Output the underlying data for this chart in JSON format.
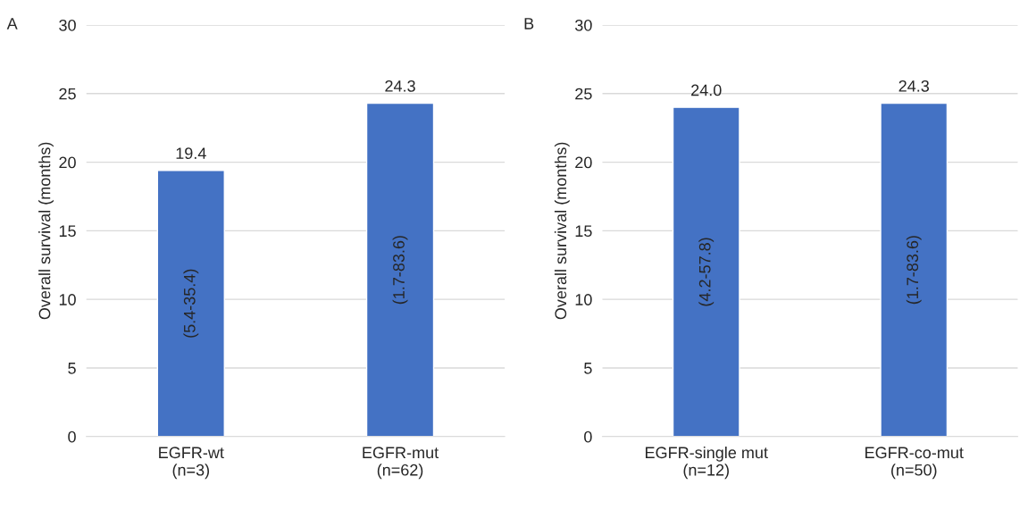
{
  "chart_data": [
    {
      "type": "bar",
      "title": "A",
      "ylabel": "Overall survival (months)",
      "categories": [
        "EGFR-wt\n(n=3)",
        "EGFR-mut\n(n=62)"
      ],
      "values": [
        19.4,
        24.3
      ],
      "value_labels": [
        "19.4",
        "24.3"
      ],
      "color": "#4472c4",
      "ylim": [
        0,
        30
      ],
      "yticks": [
        0,
        5,
        10,
        15,
        20,
        25,
        30
      ],
      "grid": "y",
      "annotations": [
        "(5.4-35.4)",
        "(1.7-83.6)"
      ]
    },
    {
      "type": "bar",
      "title": "B",
      "ylabel": "Overall survival (months)",
      "categories": [
        "EGFR-single mut\n(n=12)",
        "EGFR-co-mut\n(n=50)"
      ],
      "values": [
        24.0,
        24.3
      ],
      "value_labels": [
        "24.0",
        "24.3"
      ],
      "color": "#4472c4",
      "ylim": [
        0,
        30
      ],
      "yticks": [
        0,
        5,
        10,
        15,
        20,
        25,
        30
      ],
      "grid": "y",
      "annotations": [
        "(4.2-57.8)",
        "(1.7-83.6)"
      ]
    }
  ]
}
